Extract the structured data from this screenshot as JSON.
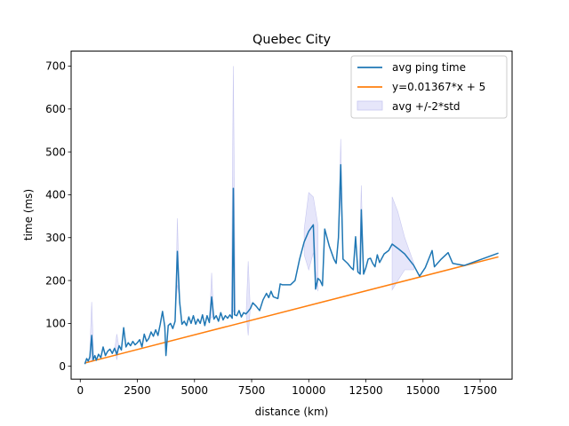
{
  "chart_data": {
    "type": "line",
    "title": "Quebec City",
    "xlabel": "distance (km)",
    "ylabel": "time (ms)",
    "xlim": [
      -400,
      18900
    ],
    "ylim": [
      -30,
      735
    ],
    "xticks": [
      0,
      2500,
      5000,
      7500,
      10000,
      12500,
      15000,
      17500
    ],
    "yticks": [
      0,
      100,
      200,
      300,
      400,
      500,
      600,
      700
    ],
    "grid": false,
    "legend_position": "upper right",
    "colors": {
      "avg": "#1f77b4",
      "fit": "#ff7f0e",
      "band_fill": "#e6e6fa",
      "band_edge": "#c8c8f0"
    },
    "legend": [
      "avg ping time",
      "y=0.01367*x + 5",
      "avg +/-2*std"
    ],
    "fit_line": {
      "name": "y=0.01367*x + 5",
      "slope": 0.01367,
      "intercept": 5,
      "x": [
        200,
        18300
      ]
    },
    "series": [
      {
        "name": "avg ping time",
        "points": [
          [
            200,
            5
          ],
          [
            280,
            18
          ],
          [
            350,
            12
          ],
          [
            420,
            22
          ],
          [
            500,
            72
          ],
          [
            560,
            15
          ],
          [
            640,
            25
          ],
          [
            700,
            14
          ],
          [
            800,
            28
          ],
          [
            900,
            20
          ],
          [
            1000,
            45
          ],
          [
            1100,
            25
          ],
          [
            1200,
            35
          ],
          [
            1300,
            40
          ],
          [
            1400,
            30
          ],
          [
            1500,
            42
          ],
          [
            1600,
            28
          ],
          [
            1700,
            48
          ],
          [
            1800,
            38
          ],
          [
            1900,
            90
          ],
          [
            2000,
            45
          ],
          [
            2100,
            55
          ],
          [
            2200,
            48
          ],
          [
            2300,
            58
          ],
          [
            2400,
            50
          ],
          [
            2500,
            55
          ],
          [
            2600,
            62
          ],
          [
            2700,
            45
          ],
          [
            2800,
            75
          ],
          [
            2900,
            58
          ],
          [
            3000,
            65
          ],
          [
            3100,
            80
          ],
          [
            3200,
            70
          ],
          [
            3300,
            85
          ],
          [
            3400,
            72
          ],
          [
            3500,
            98
          ],
          [
            3600,
            128
          ],
          [
            3700,
            92
          ],
          [
            3750,
            25
          ],
          [
            3850,
            95
          ],
          [
            3950,
            100
          ],
          [
            4050,
            88
          ],
          [
            4150,
            105
          ],
          [
            4250,
            268
          ],
          [
            4350,
            150
          ],
          [
            4450,
            98
          ],
          [
            4550,
            105
          ],
          [
            4650,
            95
          ],
          [
            4750,
            115
          ],
          [
            4850,
            100
          ],
          [
            4950,
            118
          ],
          [
            5050,
            98
          ],
          [
            5150,
            110
          ],
          [
            5250,
            100
          ],
          [
            5350,
            120
          ],
          [
            5450,
            95
          ],
          [
            5550,
            118
          ],
          [
            5650,
            102
          ],
          [
            5750,
            162
          ],
          [
            5850,
            110
          ],
          [
            5950,
            118
          ],
          [
            6050,
            105
          ],
          [
            6150,
            125
          ],
          [
            6250,
            108
          ],
          [
            6350,
            118
          ],
          [
            6450,
            112
          ],
          [
            6550,
            120
          ],
          [
            6650,
            112
          ],
          [
            6700,
            415
          ],
          [
            6750,
            120
          ],
          [
            6850,
            118
          ],
          [
            6950,
            130
          ],
          [
            7050,
            115
          ],
          [
            7150,
            125
          ],
          [
            7250,
            122
          ],
          [
            7350,
            128
          ],
          [
            7450,
            135
          ],
          [
            7550,
            148
          ],
          [
            7700,
            140
          ],
          [
            7850,
            130
          ],
          [
            8000,
            155
          ],
          [
            8150,
            170
          ],
          [
            8250,
            160
          ],
          [
            8350,
            175
          ],
          [
            8450,
            162
          ],
          [
            8550,
            160
          ],
          [
            8650,
            158
          ],
          [
            8750,
            192
          ],
          [
            8850,
            190
          ],
          [
            9000,
            190
          ],
          [
            9200,
            190
          ],
          [
            9400,
            200
          ],
          [
            9600,
            250
          ],
          [
            9800,
            290
          ],
          [
            10000,
            315
          ],
          [
            10200,
            330
          ],
          [
            10300,
            180
          ],
          [
            10400,
            205
          ],
          [
            10500,
            200
          ],
          [
            10600,
            188
          ],
          [
            10700,
            320
          ],
          [
            10900,
            280
          ],
          [
            11100,
            250
          ],
          [
            11200,
            240
          ],
          [
            11300,
            300
          ],
          [
            11400,
            470
          ],
          [
            11500,
            250
          ],
          [
            11700,
            240
          ],
          [
            11850,
            230
          ],
          [
            11950,
            225
          ],
          [
            12050,
            302
          ],
          [
            12150,
            220
          ],
          [
            12250,
            215
          ],
          [
            12300,
            365
          ],
          [
            12400,
            215
          ],
          [
            12500,
            230
          ],
          [
            12600,
            250
          ],
          [
            12700,
            252
          ],
          [
            12800,
            240
          ],
          [
            12900,
            232
          ],
          [
            13000,
            260
          ],
          [
            13100,
            242
          ],
          [
            13300,
            262
          ],
          [
            13500,
            270
          ],
          [
            13650,
            285
          ],
          [
            13900,
            275
          ],
          [
            14200,
            262
          ],
          [
            14600,
            235
          ],
          [
            14850,
            210
          ],
          [
            15100,
            230
          ],
          [
            15400,
            270
          ],
          [
            15500,
            232
          ],
          [
            15800,
            250
          ],
          [
            16100,
            265
          ],
          [
            16300,
            240
          ],
          [
            16500,
            238
          ],
          [
            16800,
            235
          ],
          [
            18300,
            264
          ]
        ]
      }
    ],
    "band": {
      "name": "avg +/-2*std",
      "spikes": [
        {
          "x": 500,
          "upper": 150,
          "lower": 10
        },
        {
          "x": 1600,
          "upper": 75,
          "lower": 15
        },
        {
          "x": 4250,
          "upper": 345,
          "lower": 190
        },
        {
          "x": 5750,
          "upper": 218,
          "lower": 115
        },
        {
          "x": 6700,
          "upper": 700,
          "lower": 130
        },
        {
          "x": 7350,
          "upper": 245,
          "lower": 72
        },
        {
          "x": 11400,
          "upper": 530,
          "lower": 405
        },
        {
          "x": 12300,
          "upper": 422,
          "lower": 310
        }
      ],
      "regions": [
        {
          "x": [
            9800,
            10000,
            10200,
            10400
          ],
          "upper": [
            320,
            405,
            395,
            330
          ],
          "lower": [
            260,
            225,
            265,
            175
          ]
        },
        {
          "x": [
            13650,
            13900,
            14200,
            14600
          ],
          "upper": [
            395,
            360,
            300,
            240
          ],
          "lower": [
            178,
            200,
            225,
            225
          ]
        }
      ]
    }
  }
}
